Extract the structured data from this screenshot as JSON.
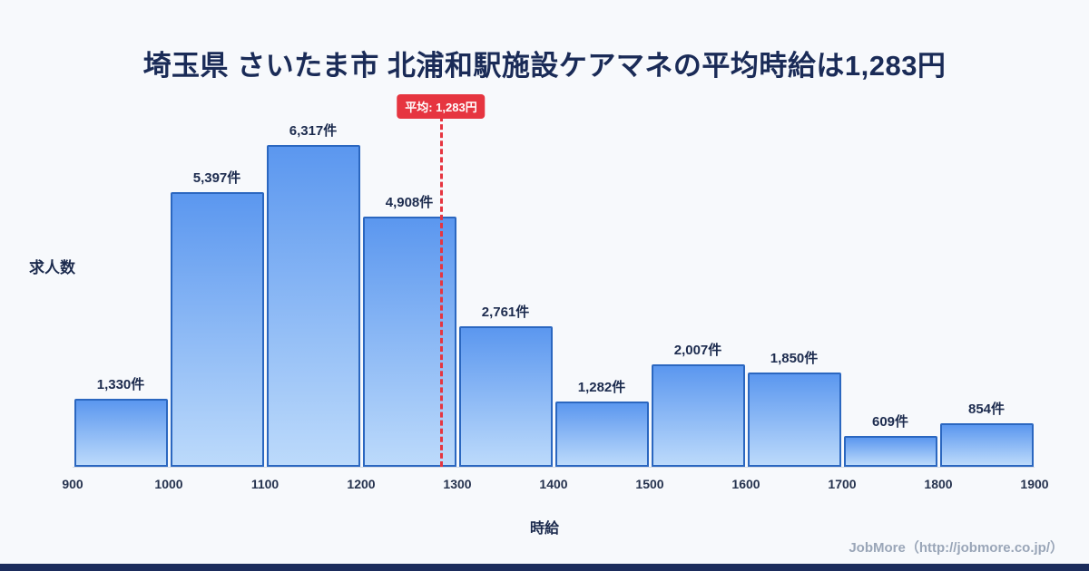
{
  "title": "埼玉県 さいたま市 北浦和駅施設ケアマネの平均時給は1,283円",
  "average": {
    "label": "平均: 1,283円",
    "value": 1283
  },
  "footer": "JobMore（http://jobmore.co.jp/）",
  "colors": {
    "background": "#f7f9fc",
    "title_text": "#1a2b57",
    "bar_fill_top": "#5b97ef",
    "bar_fill_bottom": "#bcdafb",
    "bar_border": "#2b67c0",
    "label_text": "#1c2b4e",
    "tick_text": "#25324e",
    "average_line": "#e63540",
    "badge_bg": "#e63540",
    "badge_text": "#ffffff",
    "footer_text": "#9aa6b8",
    "bottom_strip": "#1b2c5c"
  },
  "chart_data": {
    "type": "bar",
    "title": "埼玉県 さいたま市 北浦和駅施設ケアマネの平均時給は1,283円",
    "xlabel": "時給",
    "ylabel": "求人数",
    "categories": [
      "900-1000",
      "1000-1100",
      "1100-1200",
      "1200-1300",
      "1300-1400",
      "1400-1500",
      "1500-1600",
      "1600-1700",
      "1700-1800",
      "1800-1900"
    ],
    "values": [
      1330,
      5397,
      6317,
      4908,
      2761,
      1282,
      2007,
      1850,
      609,
      854
    ],
    "labels": [
      "1,330件",
      "5,397件",
      "6,317件",
      "4,908件",
      "2,761件",
      "1,282件",
      "2,007件",
      "1,850件",
      "609件",
      "854件"
    ],
    "x_ticks": [
      "900",
      "1000",
      "1100",
      "1200",
      "1300",
      "1400",
      "1500",
      "1600",
      "1700",
      "1800",
      "1900"
    ],
    "x_range": [
      900,
      1900
    ],
    "average_value": 1283,
    "average_label": "平均: 1,283円",
    "grid": "off",
    "legend": "none"
  }
}
